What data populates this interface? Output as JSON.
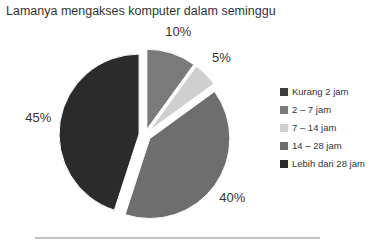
{
  "chart_data": {
    "type": "pie",
    "title": "Lamanya mengakses komputer dalam seminggu",
    "categories": [
      "Kurang 2 jam",
      "2 – 7 jam",
      "7 – 14 jam",
      "14 – 28 jam",
      "Lebih dari 28 jam"
    ],
    "values": [
      0,
      10,
      5,
      40,
      45
    ],
    "value_labels": [
      null,
      "10%",
      "5%",
      "40%",
      "45%"
    ],
    "colors": [
      "#3c3c3c",
      "#7a7a7a",
      "#cfcfcf",
      "#6e6e6e",
      "#2b2b2b"
    ],
    "data_labels": true,
    "legend": "right"
  }
}
